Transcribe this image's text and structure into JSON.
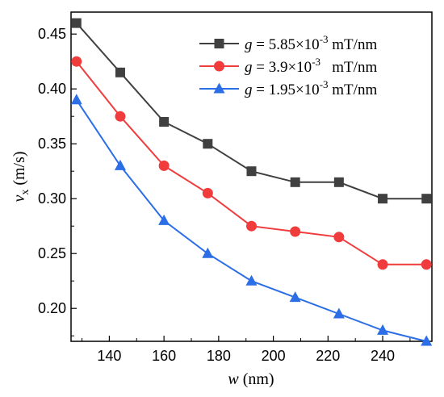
{
  "chart_data": {
    "type": "line",
    "title": "",
    "xlabel": {
      "var": "w",
      "unit": " (nm)"
    },
    "ylabel": {
      "var": "v",
      "sub": "x",
      "unit": " (m/s)"
    },
    "xlim": [
      126,
      258
    ],
    "ylim": [
      0.17,
      0.47
    ],
    "xticks": [
      140,
      160,
      180,
      200,
      220,
      240
    ],
    "xtick_labels": [
      "140",
      "160",
      "180",
      "200",
      "220",
      "240"
    ],
    "yticks": [
      0.2,
      0.25,
      0.3,
      0.35,
      0.4,
      0.45
    ],
    "ytick_labels": [
      "0.20",
      "0.25",
      "0.30",
      "0.35",
      "0.40",
      "0.45"
    ],
    "grid": false,
    "legend_position": "top-right",
    "x": [
      128,
      144,
      160,
      176,
      192,
      208,
      224,
      240,
      256
    ],
    "series": [
      {
        "label": {
          "var": "g",
          "eq": " = 5.85×10",
          "exp": "-3",
          "unit": " mT/nm"
        },
        "values": [
          0.46,
          0.415,
          0.37,
          0.35,
          0.325,
          0.315,
          0.315,
          0.3,
          0.3
        ],
        "color": "#404040",
        "marker": "square"
      },
      {
        "label": {
          "var": "g",
          "eq": " = 3.9×10",
          "exp": "-3",
          "unit": "   mT/nm"
        },
        "values": [
          0.425,
          0.375,
          0.33,
          0.305,
          0.275,
          0.27,
          0.265,
          0.24,
          0.24
        ],
        "color": "#f03c3c",
        "marker": "circle"
      },
      {
        "label": {
          "var": "g",
          "eq": " = 1.95×10",
          "exp": "-3",
          "unit": " mT/nm"
        },
        "values": [
          0.39,
          0.33,
          0.28,
          0.25,
          0.225,
          0.21,
          0.195,
          0.18,
          0.17
        ],
        "color": "#2b6ee6",
        "marker": "triangle"
      }
    ]
  }
}
